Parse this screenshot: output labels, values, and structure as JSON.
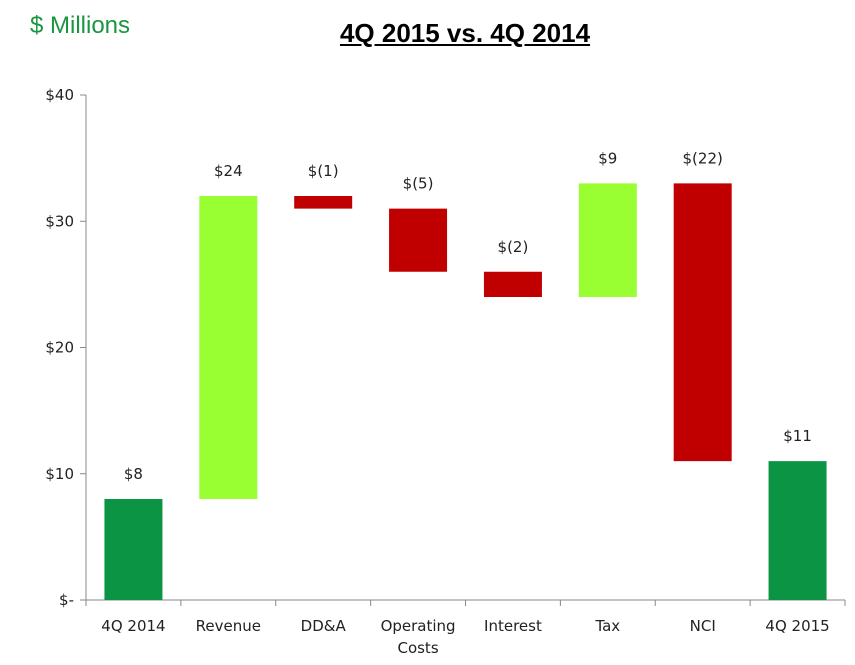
{
  "header": {
    "units": "$ Millions",
    "title": "4Q 2015 vs. 4Q 2014"
  },
  "colors": {
    "total": "#0b9444",
    "increase": "#99ff33",
    "decrease": "#c00000",
    "axis": "#888888"
  },
  "chart_data": {
    "type": "bar",
    "subtype": "waterfall",
    "title": "4Q 2015 vs. 4Q 2014",
    "ylabel": "$ Millions",
    "ylim": [
      0,
      40
    ],
    "y_ticks": [
      {
        "value": 0,
        "label": "$-"
      },
      {
        "value": 10,
        "label": "$10"
      },
      {
        "value": 20,
        "label": "$20"
      },
      {
        "value": 30,
        "label": "$30"
      },
      {
        "value": 40,
        "label": "$40"
      }
    ],
    "categories": [
      [
        "4Q 2014"
      ],
      [
        "Revenue"
      ],
      [
        "DD&A"
      ],
      [
        "Operating",
        "Costs"
      ],
      [
        "Interest"
      ],
      [
        "Tax"
      ],
      [
        "NCI"
      ],
      [
        "4Q 2015"
      ]
    ],
    "bars": [
      {
        "kind": "total",
        "start": 0,
        "end": 8,
        "label": "$8"
      },
      {
        "kind": "increase",
        "start": 8,
        "end": 32,
        "label": "$24"
      },
      {
        "kind": "decrease",
        "start": 32,
        "end": 31,
        "label": "$(1)"
      },
      {
        "kind": "decrease",
        "start": 31,
        "end": 26,
        "label": "$(5)"
      },
      {
        "kind": "decrease",
        "start": 26,
        "end": 24,
        "label": "$(2)"
      },
      {
        "kind": "increase",
        "start": 24,
        "end": 33,
        "label": "$9"
      },
      {
        "kind": "decrease",
        "start": 33,
        "end": 11,
        "label": "$(22)"
      },
      {
        "kind": "total",
        "start": 0,
        "end": 11,
        "label": "$11"
      }
    ],
    "grid": false,
    "legend": "none"
  }
}
